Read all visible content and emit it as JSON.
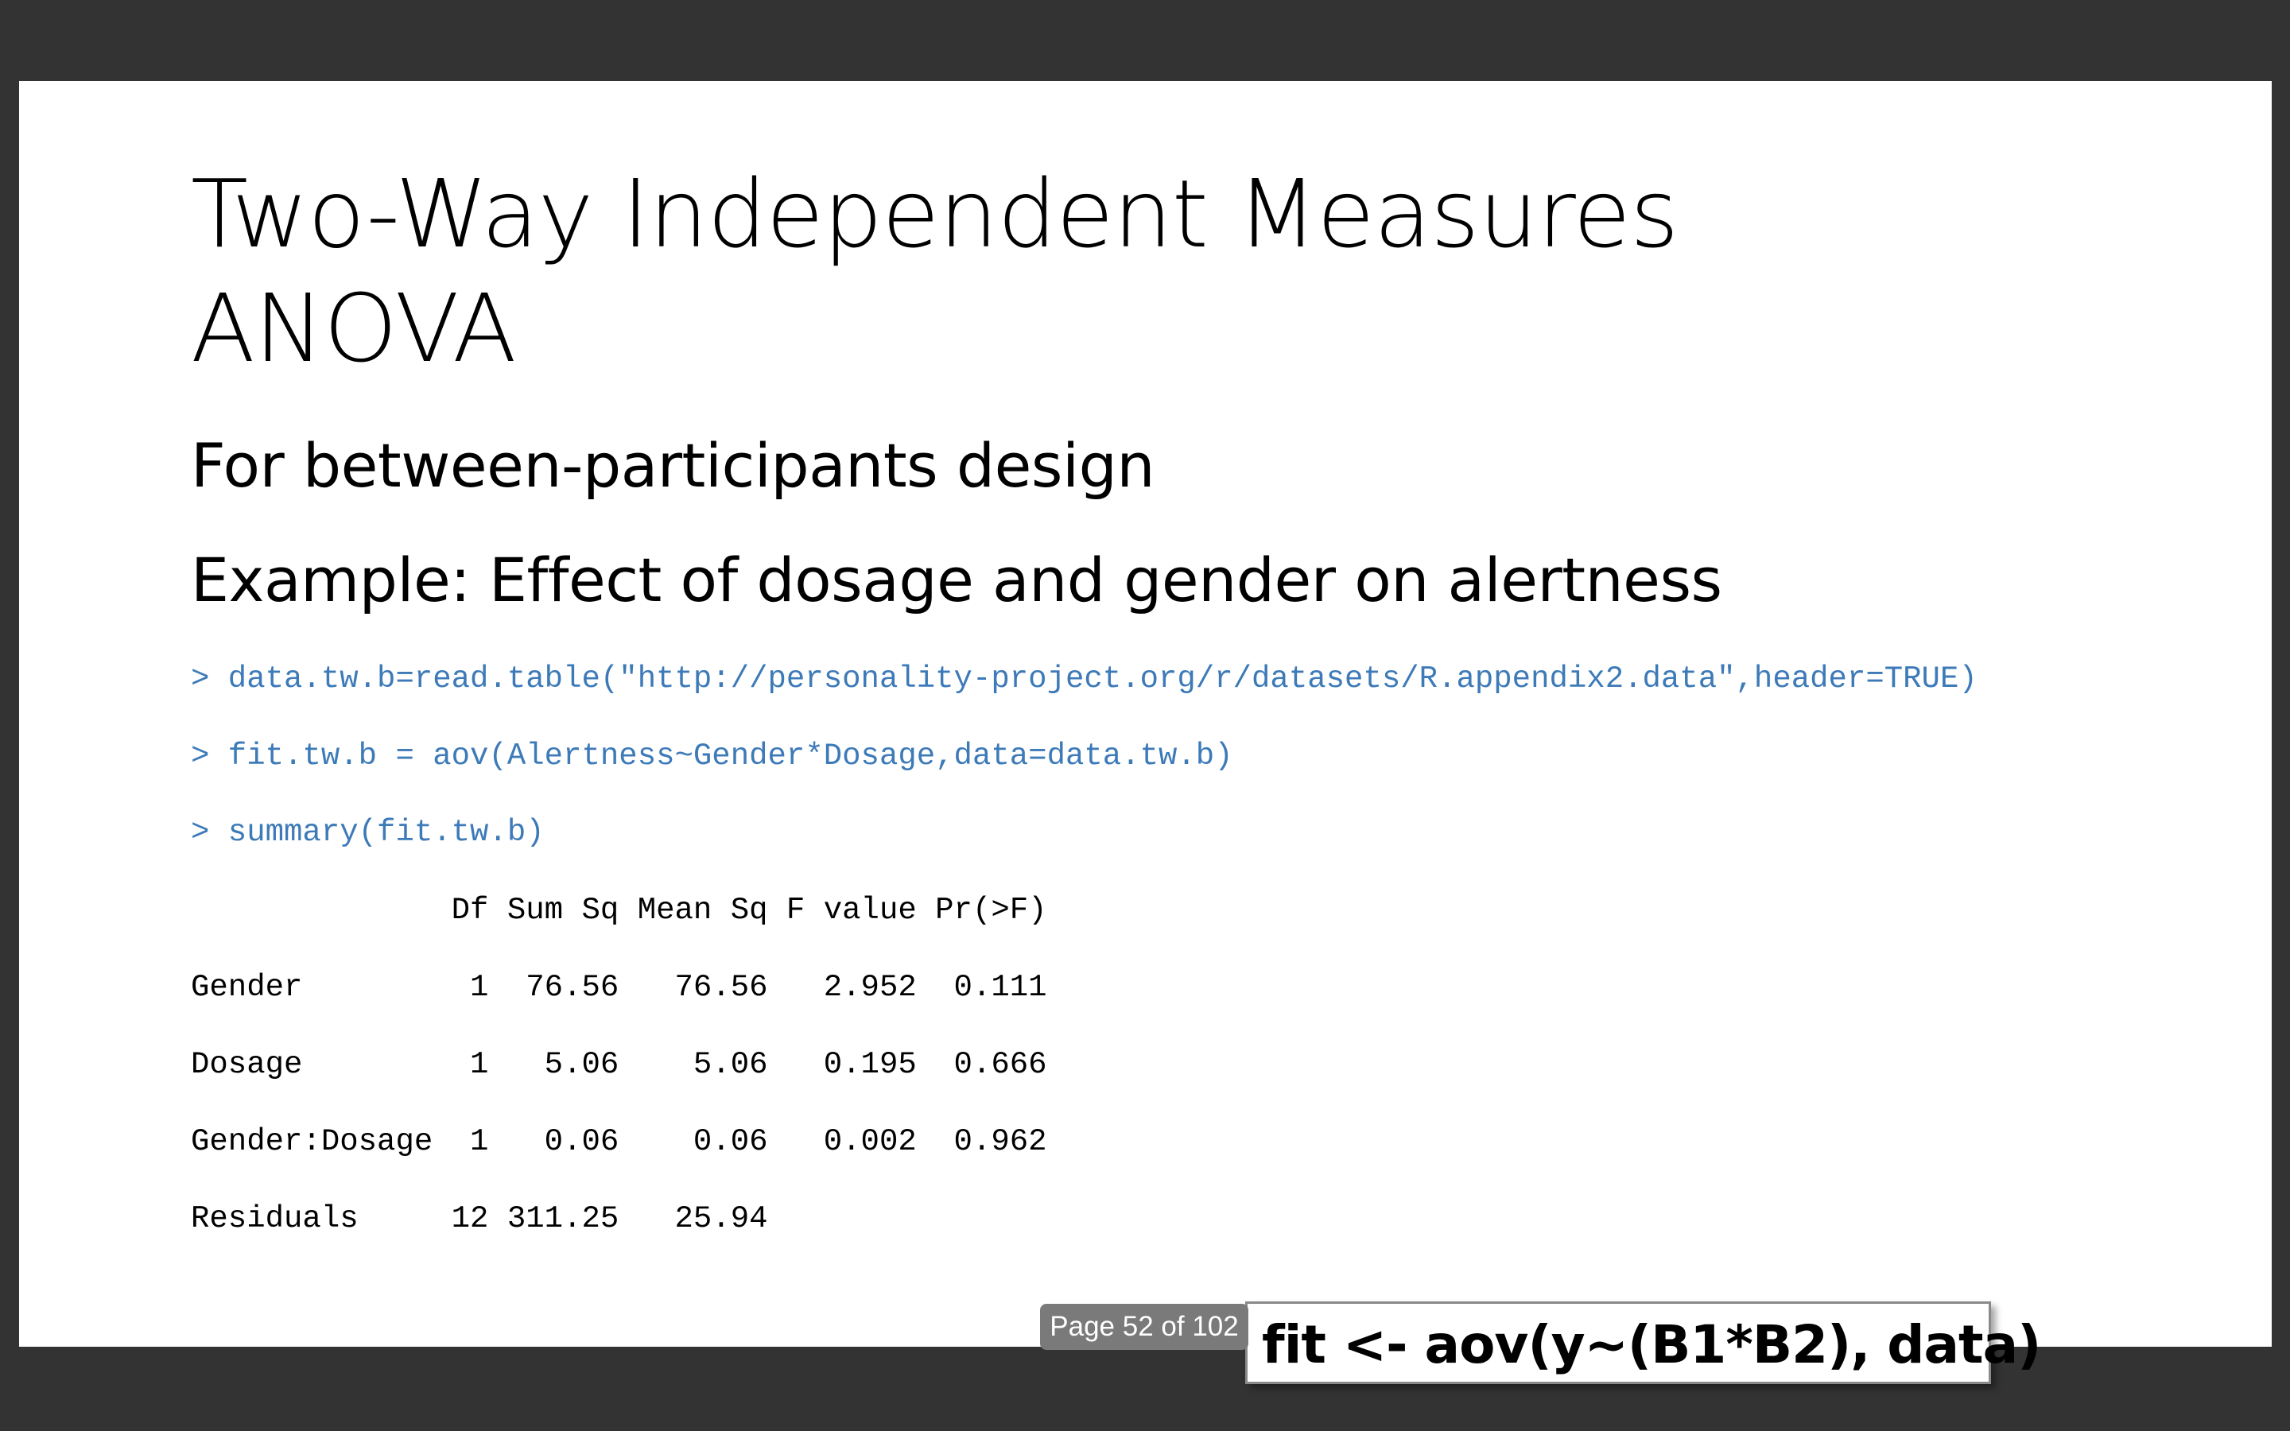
{
  "slide": {
    "title_line1": "Two-Way Independent Measures",
    "title_line2": "ANOVA",
    "subtitle1": "For between-participants design",
    "subtitle2": "Example: Effect of dosage and gender on alertness",
    "commands": [
      "> data.tw.b=read.table(\"http://personality-project.org/r/datasets/R.appendix2.data\",header=TRUE)",
      "> fit.tw.b = aov(Alertness~Gender*Dosage,data=data.tw.b)",
      "> summary(fit.tw.b)"
    ],
    "output": {
      "header": "              Df Sum Sq Mean Sq F value Pr(>F)",
      "rows": [
        "Gender         1  76.56   76.56   2.952  0.111",
        "Dosage         1   5.06    5.06   0.195  0.666",
        "Gender:Dosage  1   0.06    0.06   0.002  0.962",
        "Residuals     12 311.25   25.94"
      ]
    },
    "callout": "fit <- aov(y~(B1*B2), data)"
  },
  "viewer": {
    "page_indicator": "Page 52 of 102",
    "background_color": "#333333",
    "code_color": "#3d7ab8"
  }
}
